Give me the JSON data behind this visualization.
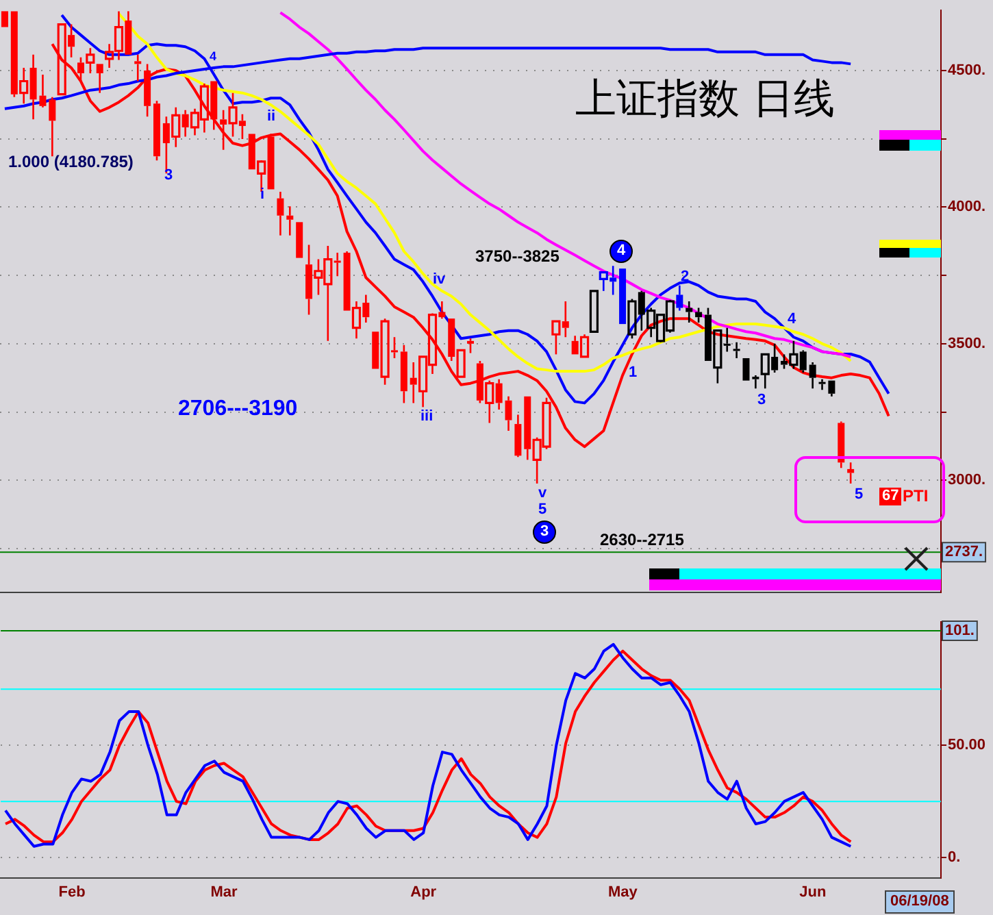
{
  "chart_data": [
    {
      "type": "candlestick",
      "title": "上证指数 日线",
      "categories": [
        null,
        null,
        null,
        null,
        null,
        null,
        null,
        null,
        null,
        null,
        null,
        null,
        null,
        null,
        null,
        null,
        null,
        null,
        null,
        null,
        null,
        null,
        null,
        null,
        null,
        null,
        null,
        null,
        null,
        null,
        null,
        null,
        null,
        null,
        null,
        null,
        null,
        null,
        null,
        null,
        null,
        null,
        null,
        null,
        null,
        null,
        null,
        null,
        null,
        null,
        null,
        null,
        null,
        null,
        null,
        null,
        null,
        null,
        null,
        null,
        null,
        null,
        null,
        null,
        null,
        null,
        null,
        null,
        null,
        null,
        null,
        null,
        null,
        null,
        null,
        null,
        null,
        null,
        null,
        null,
        null,
        null,
        null,
        null,
        null,
        null,
        null,
        null,
        null,
        null,
        null,
        null,
        null,
        null,
        null,
        null,
        null,
        null,
        null
      ],
      "ohlc": [
        [
          4717,
          4717,
          4659,
          4659
        ],
        [
          4717,
          4717,
          4403,
          4413
        ],
        [
          4418,
          4510,
          4379,
          4461
        ],
        [
          4510,
          4558,
          4321,
          4394
        ],
        [
          4408,
          4485,
          4365,
          4370
        ],
        [
          4394,
          4403,
          4186,
          4316
        ],
        [
          4413,
          4669,
          4413,
          4669
        ],
        [
          4630,
          4669,
          4548,
          4587
        ],
        [
          4529,
          4548,
          4461,
          4490
        ],
        [
          4529,
          4582,
          4490,
          4558
        ],
        [
          4524,
          4524,
          4418,
          4490
        ],
        [
          4543,
          4597,
          4510,
          4568
        ],
        [
          4572,
          4717,
          4539,
          4659
        ],
        [
          4683,
          4717,
          4558,
          4558
        ],
        [
          4534,
          4558,
          4461,
          4524
        ],
        [
          4500,
          4524,
          4331,
          4370
        ],
        [
          4379,
          4389,
          4171,
          4186
        ],
        [
          4307,
          4331,
          4123,
          4234
        ],
        [
          4258,
          4365,
          4220,
          4336
        ],
        [
          4340,
          4355,
          4258,
          4292
        ],
        [
          4292,
          4360,
          4263,
          4345
        ],
        [
          4321,
          4452,
          4273,
          4442
        ],
        [
          4461,
          4461,
          4283,
          4321
        ],
        [
          4321,
          4355,
          4210,
          4302
        ],
        [
          4307,
          4418,
          4258,
          4365
        ],
        [
          4316,
          4340,
          4249,
          4297
        ],
        [
          4268,
          4268,
          4138,
          4138
        ],
        [
          4123,
          4171,
          4056,
          4167
        ],
        [
          4258,
          4268,
          4065,
          4065
        ],
        [
          4032,
          4056,
          3896,
          3969
        ],
        [
          3969,
          4003,
          3896,
          3954
        ],
        [
          3945,
          3945,
          3814,
          3814
        ],
        [
          3790,
          3862,
          3606,
          3664
        ],
        [
          3742,
          3809,
          3679,
          3766
        ],
        [
          3718,
          3858,
          3510,
          3809
        ],
        [
          3804,
          3833,
          3747,
          3800
        ],
        [
          3833,
          3838,
          3621,
          3621
        ],
        [
          3558,
          3655,
          3519,
          3631
        ],
        [
          3650,
          3679,
          3577,
          3597
        ],
        [
          3544,
          3544,
          3408,
          3408
        ],
        [
          3379,
          3592,
          3350,
          3582
        ],
        [
          3476,
          3524,
          3447,
          3471
        ],
        [
          3471,
          3495,
          3283,
          3326
        ],
        [
          3375,
          3432,
          3283,
          3350
        ],
        [
          3326,
          3452,
          3268,
          3452
        ],
        [
          3423,
          3611,
          3389,
          3606
        ],
        [
          3616,
          3655,
          3592,
          3597
        ],
        [
          3592,
          3592,
          3437,
          3452
        ],
        [
          3379,
          3476,
          3379,
          3476
        ],
        [
          3510,
          3519,
          3466,
          3500
        ],
        [
          3428,
          3437,
          3283,
          3292
        ],
        [
          3283,
          3365,
          3210,
          3355
        ],
        [
          3355,
          3370,
          3259,
          3283
        ],
        [
          3292,
          3307,
          3181,
          3220
        ],
        [
          3206,
          3240,
          3085,
          3090
        ],
        [
          3307,
          3307,
          3075,
          3114
        ],
        [
          3075,
          3157,
          2988,
          3148
        ],
        [
          3123,
          3302,
          3114,
          3283
        ],
        [
          3534,
          3582,
          3461,
          3582
        ],
        [
          3582,
          3655,
          3524,
          3558
        ],
        [
          3510,
          3529,
          3461,
          3461
        ],
        [
          3452,
          3534,
          3452,
          3524
        ],
        [
          3544,
          3693,
          3544,
          3693
        ],
        [
          3737,
          3761,
          3693,
          3761
        ],
        [
          3742,
          3785,
          3679,
          3727
        ],
        [
          3775,
          3775,
          3572,
          3572
        ],
        [
          3534,
          3664,
          3519,
          3655
        ],
        [
          3689,
          3693,
          3548,
          3606
        ],
        [
          3558,
          3631,
          3524,
          3621
        ],
        [
          3510,
          3610,
          3505,
          3606
        ],
        [
          3548,
          3660,
          3540,
          3655
        ],
        [
          3679,
          3713,
          3621,
          3631
        ],
        [
          3631,
          3655,
          3577,
          3616
        ],
        [
          3616,
          3631,
          3577,
          3597
        ],
        [
          3606,
          3631,
          3437,
          3437
        ],
        [
          3413,
          3548,
          3355,
          3548
        ],
        [
          3500,
          3558,
          3471,
          3495
        ],
        [
          3481,
          3505,
          3447,
          3476
        ],
        [
          3447,
          3447,
          3365,
          3365
        ],
        [
          3379,
          3384,
          3336,
          3370
        ],
        [
          3389,
          3461,
          3336,
          3461
        ],
        [
          3452,
          3500,
          3394,
          3403
        ],
        [
          3437,
          3461,
          3408,
          3423
        ],
        [
          3423,
          3510,
          3408,
          3461
        ],
        [
          3471,
          3476,
          3394,
          3403
        ],
        [
          3423,
          3432,
          3336,
          3375
        ],
        [
          3360,
          3370,
          3331,
          3355
        ],
        [
          3365,
          3365,
          3307,
          3317
        ],
        [
          3210,
          3215,
          3045,
          3065
        ],
        [
          3041,
          3065,
          2988,
          3027
        ],
        null,
        null,
        null,
        null,
        null,
        null,
        null,
        null,
        null
      ],
      "colors": [
        "#ff0000",
        "#ff0000",
        "#ff0000",
        "#ff0000",
        "#ff0000",
        "#ff0000",
        "#ff0000",
        "#ff0000",
        "#ff0000",
        "#ff0000",
        "#ff0000",
        "#ff0000",
        "#ff0000",
        "#ff0000",
        "#ff0000",
        "#ff0000",
        "#ff0000",
        "#ff0000",
        "#ff0000",
        "#ff0000",
        "#ff0000",
        "#ff0000",
        "#ff0000",
        "#ff0000",
        "#ff0000",
        "#ff0000",
        "#ff0000",
        "#ff0000",
        "#ff0000",
        "#ff0000",
        "#ff0000",
        "#ff0000",
        "#ff0000",
        "#ff0000",
        "#ff0000",
        "#ff0000",
        "#ff0000",
        "#ff0000",
        "#ff0000",
        "#ff0000",
        "#ff0000",
        "#ff0000",
        "#ff0000",
        "#ff0000",
        "#ff0000",
        "#ff0000",
        "#ff0000",
        "#ff0000",
        "#ff0000",
        "#ff0000",
        "#ff0000",
        "#ff0000",
        "#ff0000",
        "#ff0000",
        "#ff0000",
        "#ff0000",
        "#ff0000",
        "#ff0000",
        "#ff0000",
        "#ff0000",
        "#ff0000",
        "#ff0000",
        "#000000",
        "#0000ff",
        "#0000ff",
        "#0000ff",
        "#000000",
        "#000000",
        "#000000",
        "#000000",
        "#000000",
        "#0000ff",
        "#000000",
        "#000000",
        "#000000",
        "#000000",
        "#000000",
        "#000000",
        "#000000",
        "#000000",
        "#000000",
        "#000000",
        "#000000",
        "#000000",
        "#000000",
        "#000000",
        "#000000",
        "#000000",
        "#ff0000",
        "#ff0000",
        null,
        null,
        null,
        null,
        null,
        null,
        null,
        null,
        null
      ],
      "series": [
        {
          "type": "line",
          "color": "#0000ff",
          "values": [
            4360,
            4365,
            4370,
            4379,
            4384,
            4394,
            4399,
            4408,
            4418,
            4428,
            4432,
            4437,
            4447,
            4452,
            4461,
            4466,
            4476,
            4481,
            4490,
            4495,
            4500,
            4505,
            4510,
            4514,
            4514,
            4519,
            4524,
            4529,
            4534,
            4539,
            4543,
            4543,
            4548,
            4553,
            4558,
            4563,
            4563,
            4568,
            4568,
            4572,
            4572,
            4577,
            4577,
            4577,
            4582,
            4582,
            4582,
            4582,
            4582,
            4582,
            4582,
            4582,
            4582,
            4582,
            4582,
            4582,
            4582,
            4582,
            4582,
            4582,
            4582,
            4582,
            4582,
            4582,
            4582,
            4582,
            4582,
            4582,
            4582,
            4582,
            4577,
            4577,
            4577,
            4577,
            4577,
            4568,
            4568,
            4568,
            4568,
            4568,
            4558,
            4558,
            4558,
            4558,
            4558,
            4539,
            4534,
            4529,
            4529,
            4524,
            null,
            null,
            null,
            null,
            null,
            null,
            null,
            null,
            null
          ]
        },
        {
          "type": "line",
          "color": "#ff00ff",
          "values": [
            null,
            null,
            null,
            null,
            null,
            null,
            null,
            null,
            null,
            null,
            null,
            null,
            null,
            null,
            null,
            null,
            null,
            null,
            null,
            null,
            null,
            null,
            null,
            null,
            null,
            null,
            null,
            null,
            null,
            4712,
            4688,
            4659,
            4635,
            4606,
            4577,
            4543,
            4505,
            4466,
            4428,
            4394,
            4355,
            4321,
            4283,
            4244,
            4205,
            4172,
            4143,
            4114,
            4085,
            4060,
            4036,
            4012,
            3993,
            3969,
            3945,
            3925,
            3906,
            3882,
            3862,
            3843,
            3824,
            3804,
            3785,
            3766,
            3751,
            3737,
            3718,
            3698,
            3684,
            3669,
            3659,
            3645,
            3631,
            3611,
            3592,
            3572,
            3563,
            3553,
            3544,
            3539,
            3529,
            3519,
            3515,
            3505,
            3495,
            3486,
            3471,
            3466,
            3462,
            3452,
            null,
            null,
            null,
            null,
            null,
            null,
            null,
            null,
            null
          ]
        },
        {
          "type": "line",
          "color": "#ffff00",
          "values": [
            null,
            null,
            null,
            null,
            null,
            null,
            null,
            null,
            null,
            null,
            null,
            null,
            4708,
            4669,
            4626,
            4597,
            4548,
            4505,
            4490,
            4481,
            4466,
            4447,
            4437,
            4428,
            4423,
            4418,
            4408,
            4394,
            4374,
            4350,
            4321,
            4292,
            4263,
            4230,
            4176,
            4123,
            4094,
            4070,
            4041,
            4012,
            3959,
            3906,
            3838,
            3800,
            3756,
            3718,
            3693,
            3674,
            3645,
            3606,
            3577,
            3548,
            3515,
            3481,
            3452,
            3428,
            3408,
            3404,
            3399,
            3399,
            3399,
            3399,
            3404,
            3423,
            3447,
            3457,
            3471,
            3481,
            3490,
            3505,
            3519,
            3524,
            3534,
            3544,
            3553,
            3563,
            3568,
            3572,
            3572,
            3572,
            3568,
            3563,
            3558,
            3544,
            3534,
            3519,
            3500,
            3486,
            3466,
            3437,
            null,
            null,
            null,
            null,
            null,
            null,
            null,
            null,
            null
          ]
        },
        {
          "type": "line",
          "color": "#ff0000",
          "values": [
            null,
            null,
            null,
            null,
            null,
            4597,
            4539,
            4510,
            4461,
            4389,
            4350,
            4365,
            4384,
            4408,
            4437,
            4476,
            4495,
            4505,
            4500,
            4481,
            4428,
            4370,
            4321,
            4273,
            4234,
            4225,
            4234,
            4254,
            4263,
            4268,
            4239,
            4210,
            4176,
            4138,
            4099,
            4041,
            3911,
            3838,
            3742,
            3708,
            3674,
            3635,
            3616,
            3597,
            3558,
            3515,
            3462,
            3399,
            3350,
            3355,
            3365,
            3379,
            3389,
            3394,
            3399,
            3384,
            3365,
            3326,
            3268,
            3191,
            3148,
            3123,
            3152,
            3181,
            3283,
            3384,
            3462,
            3529,
            3568,
            3582,
            3592,
            3592,
            3592,
            3568,
            3544,
            3534,
            3529,
            3524,
            3519,
            3515,
            3510,
            3495,
            3452,
            3413,
            3394,
            3384,
            3379,
            3375,
            3384,
            3389,
            3384,
            3375,
            3317,
            3235,
            null,
            null,
            null,
            null,
            null
          ]
        },
        {
          "type": "line",
          "color": "#0000ff",
          "values": [
            null,
            null,
            null,
            null,
            null,
            null,
            4703,
            4659,
            4630,
            4601,
            4572,
            4558,
            4558,
            4558,
            4563,
            4592,
            4597,
            4592,
            4592,
            4587,
            4572,
            4543,
            4486,
            4428,
            4379,
            4384,
            4384,
            4389,
            4399,
            4399,
            4374,
            4321,
            4273,
            4210,
            4138,
            4090,
            4041,
            3993,
            3945,
            3906,
            3858,
            3809,
            3790,
            3771,
            3727,
            3674,
            3616,
            3568,
            3519,
            3524,
            3529,
            3534,
            3544,
            3548,
            3548,
            3534,
            3510,
            3471,
            3404,
            3331,
            3288,
            3283,
            3317,
            3365,
            3433,
            3495,
            3558,
            3606,
            3645,
            3679,
            3703,
            3722,
            3727,
            3713,
            3689,
            3674,
            3669,
            3664,
            3664,
            3655,
            3616,
            3592,
            3558,
            3524,
            3510,
            3486,
            3471,
            3466,
            3462,
            3462,
            3452,
            3433,
            3375,
            3317,
            null,
            null,
            null,
            null,
            null
          ]
        }
      ],
      "ylim": [
        2590,
        4720
      ],
      "yticks": [
        {
          "value": 2750,
          "label": null
        },
        {
          "value": 3000,
          "label": "3000."
        },
        {
          "value": 3250,
          "label": null
        },
        {
          "value": 3500,
          "label": "3500."
        },
        {
          "value": 3750,
          "label": null
        },
        {
          "value": 4000,
          "label": "4000."
        },
        {
          "value": 4250,
          "label": null
        },
        {
          "value": 4500,
          "label": "4500."
        }
      ],
      "grid": "y",
      "tick_labels": "y",
      "ref_lines": [
        {
          "axis": "y",
          "value": 2737,
          "label": "2737.",
          "color": "#008000"
        }
      ],
      "annotations": [
        "1.000 (4180.785)",
        "3",
        "4",
        "ii",
        "i",
        "2706---3190",
        "iii",
        "iv",
        "v",
        "5",
        "3",
        "3750--3825",
        "4",
        "1",
        "2",
        "3",
        "4",
        "5",
        "67",
        "PTI",
        "2630--2715"
      ]
    },
    {
      "type": "line",
      "categories": [
        null,
        null,
        null,
        null,
        null,
        null,
        null,
        "Feb",
        null,
        null,
        null,
        null,
        null,
        null,
        null,
        null,
        null,
        null,
        null,
        null,
        null,
        null,
        null,
        "Mar",
        null,
        null,
        null,
        null,
        null,
        null,
        null,
        null,
        null,
        null,
        null,
        null,
        null,
        null,
        null,
        null,
        null,
        null,
        null,
        null,
        "Apr",
        null,
        null,
        null,
        null,
        null,
        null,
        null,
        null,
        null,
        null,
        null,
        null,
        null,
        null,
        null,
        null,
        null,
        null,
        null,
        null,
        "May",
        null,
        null,
        null,
        null,
        null,
        null,
        null,
        null,
        null,
        null,
        null,
        null,
        null,
        null,
        null,
        null,
        null,
        null,
        null,
        "Jun",
        null,
        null,
        null,
        null,
        null,
        null,
        null,
        null,
        null,
        null,
        null,
        null,
        null
      ],
      "series": [
        {
          "color": "#0000ff",
          "values": [
            21,
            15,
            10,
            5,
            6,
            6,
            19,
            29,
            35,
            34,
            37,
            47,
            61,
            65,
            65,
            50,
            37,
            19,
            19,
            29,
            35,
            41,
            43,
            38,
            36,
            34,
            26,
            17,
            9,
            9,
            9,
            9,
            8,
            12,
            20,
            25,
            24,
            19,
            13,
            9,
            12,
            12,
            12,
            8,
            11,
            32,
            47,
            46,
            39,
            33,
            27,
            22,
            19,
            18,
            15,
            8,
            15,
            23,
            50,
            70,
            82,
            80,
            84,
            92,
            95,
            89,
            84,
            80,
            80,
            77,
            78,
            72,
            65,
            51,
            34,
            29,
            26,
            34,
            22,
            15,
            16,
            20,
            25,
            27,
            29,
            23,
            17,
            9,
            7,
            5,
            null,
            null,
            null,
            null,
            null,
            null,
            null,
            null,
            null
          ]
        },
        {
          "color": "#ff0000",
          "values": [
            15,
            17,
            14,
            10,
            7,
            7,
            11,
            17,
            25,
            30,
            35,
            39,
            50,
            58,
            65,
            60,
            47,
            34,
            25,
            24,
            34,
            39,
            41,
            42,
            39,
            36,
            29,
            22,
            15,
            12,
            10,
            9,
            8,
            8,
            11,
            15,
            22,
            23,
            19,
            14,
            12,
            12,
            12,
            12,
            13,
            20,
            30,
            39,
            44,
            37,
            33,
            27,
            23,
            20,
            15,
            11,
            9,
            15,
            27,
            51,
            65,
            72,
            78,
            83,
            88,
            92,
            88,
            84,
            81,
            79,
            79,
            75,
            70,
            59,
            48,
            39,
            31,
            29,
            26,
            22,
            18,
            18,
            20,
            23,
            27,
            25,
            21,
            15,
            10,
            7,
            null,
            null,
            null,
            null,
            null,
            null,
            null,
            null,
            null
          ]
        }
      ],
      "ylim": [
        -9,
        105
      ],
      "yticks": [
        {
          "value": 0,
          "label": "0."
        },
        {
          "value": 50,
          "label": "50.00"
        }
      ],
      "grid": "y",
      "ref_lines": [
        {
          "axis": "y",
          "value": 25,
          "color": "#00ffff"
        },
        {
          "axis": "y",
          "value": 75,
          "color": "#00ffff"
        },
        {
          "axis": "y",
          "value": 101,
          "label": "101.",
          "color": "#008000"
        }
      ],
      "annotations": [
        "06/19/08"
      ]
    }
  ]
}
